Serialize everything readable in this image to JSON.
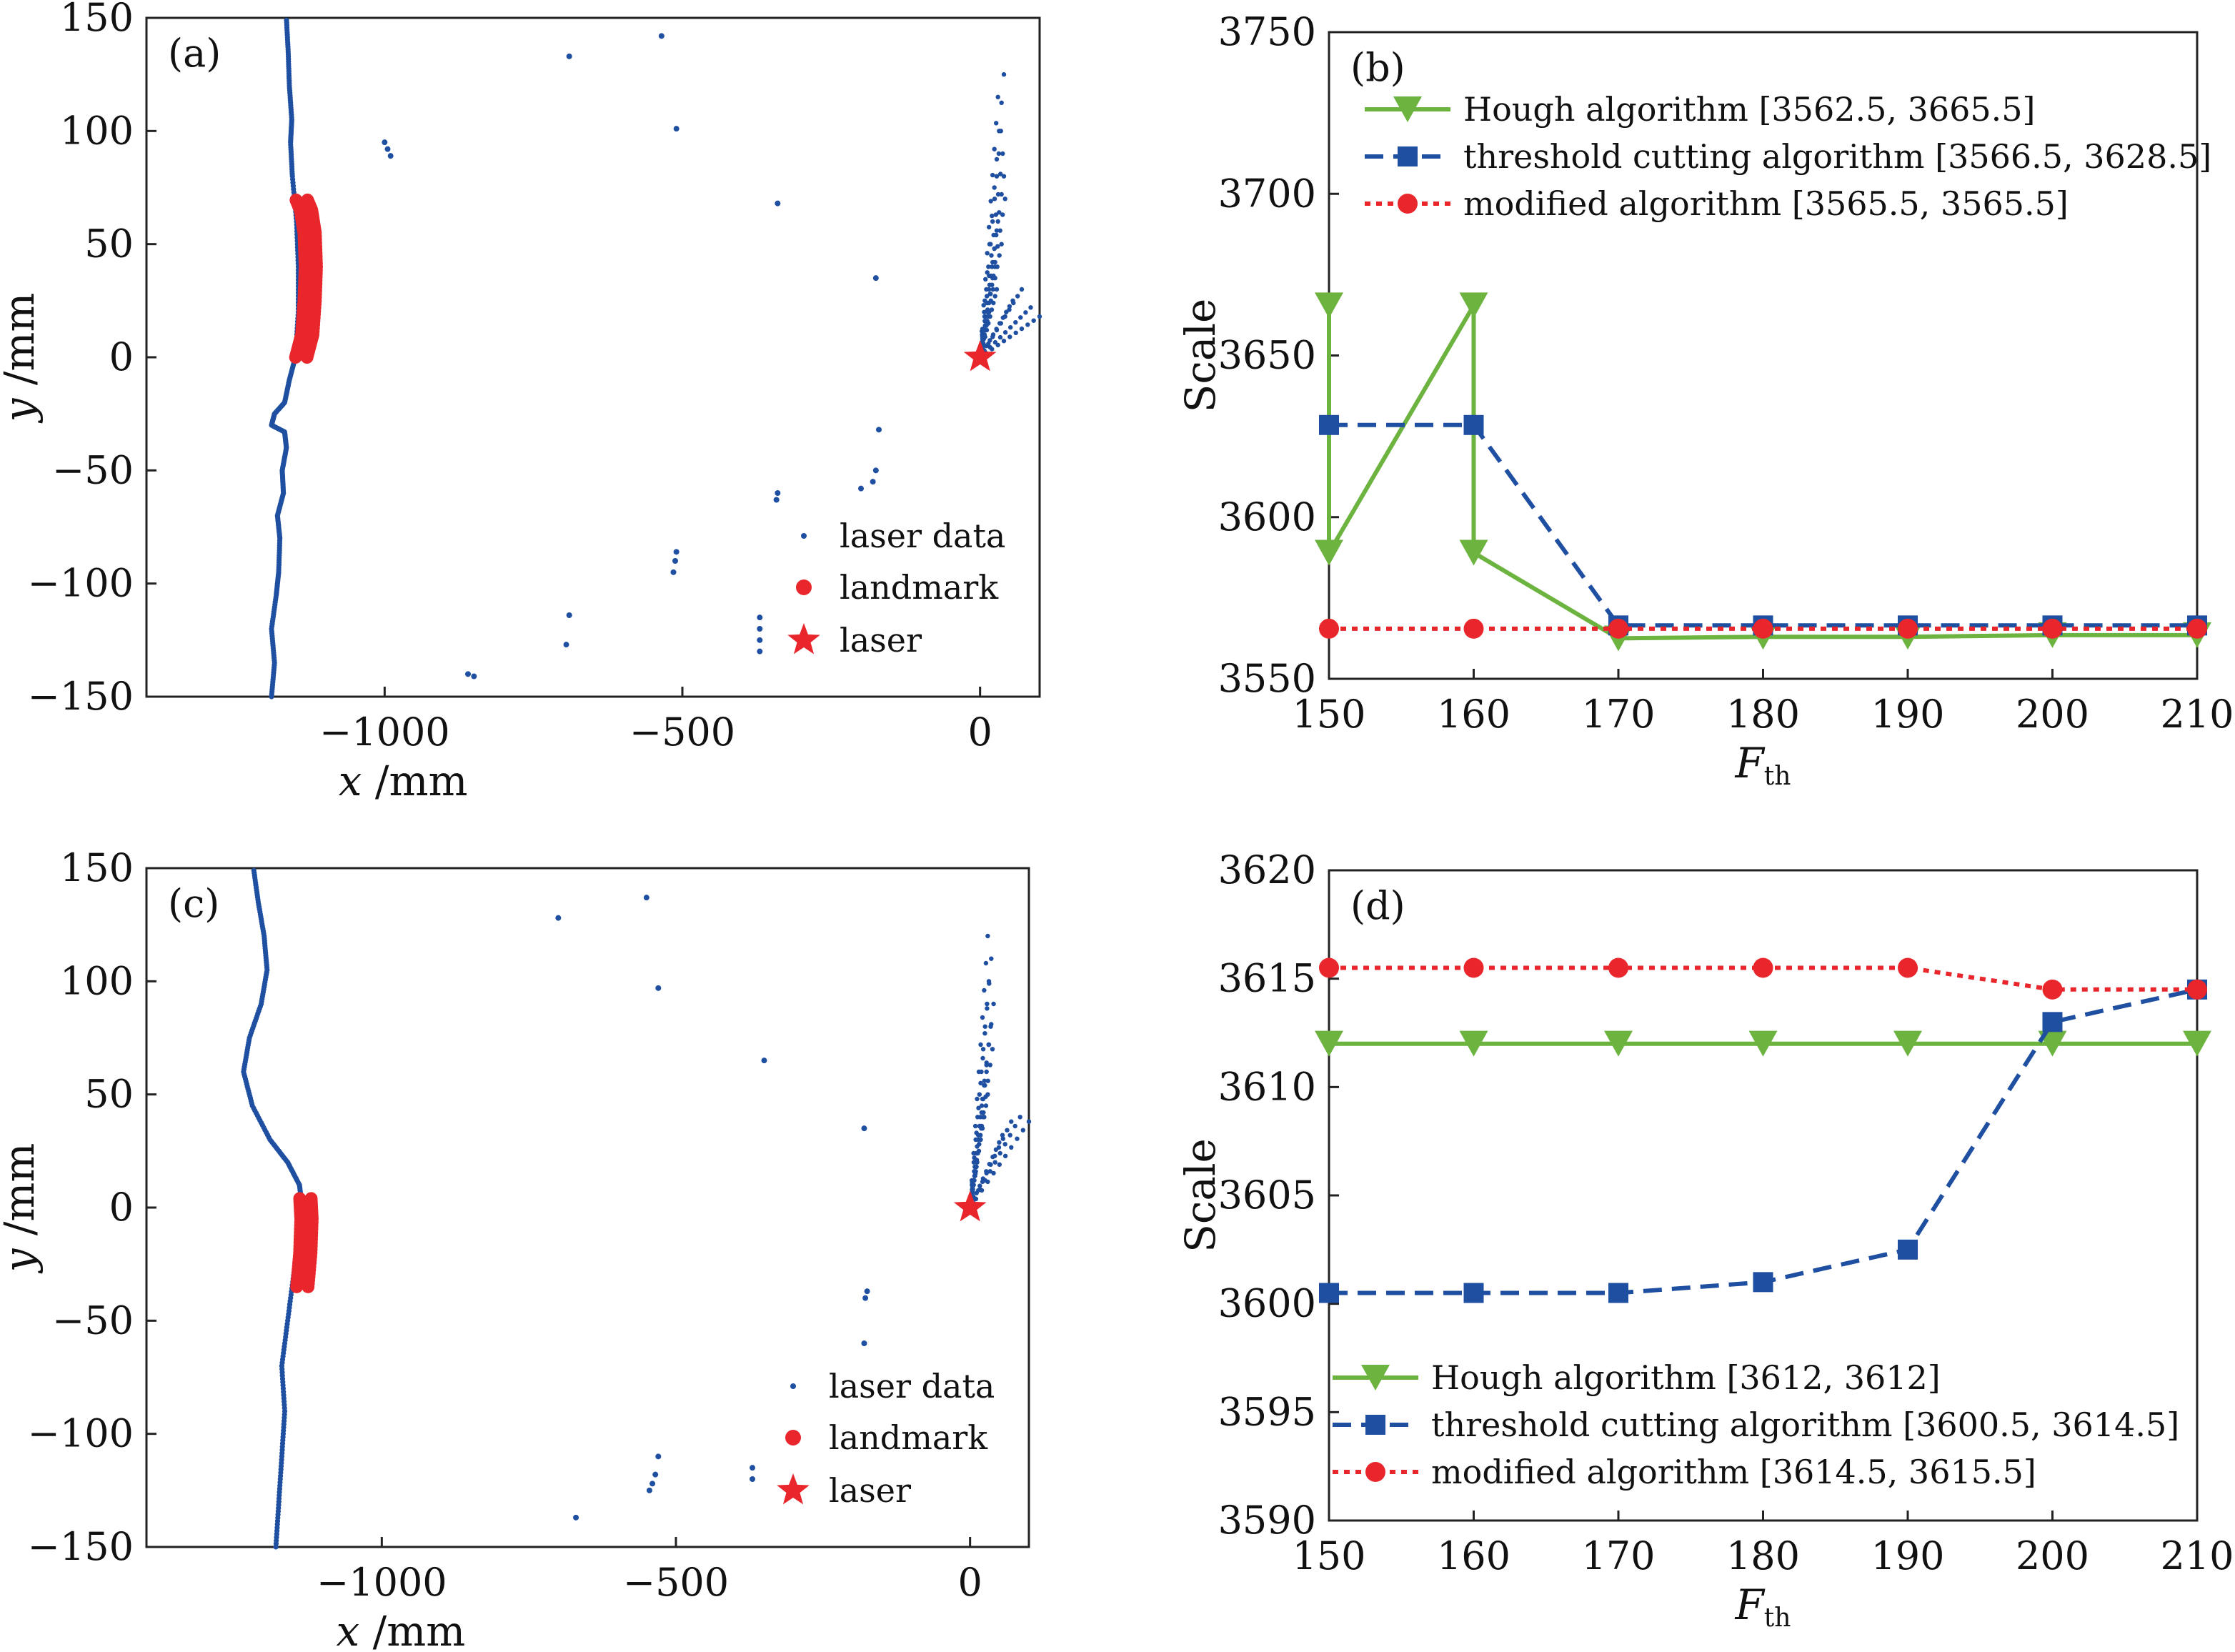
{
  "figure": {
    "panels": [
      "(a)",
      "(b)",
      "(c)",
      "(d)"
    ]
  },
  "colors": {
    "laser_data": "#1f4fa0",
    "landmark": "#e8262c",
    "hough": "#6cb33f",
    "threshold": "#1f4fa0",
    "modified": "#e8262c"
  },
  "chart_data": [
    {
      "panel": "(a)",
      "type": "scatter",
      "xlabel": "x /mm",
      "ylabel": "y /mm",
      "xlim": [
        -1400,
        100
      ],
      "ylim": [
        -150,
        150
      ],
      "xticks": [
        -1000,
        -500,
        0
      ],
      "yticks": [
        150,
        100,
        50,
        0,
        -50,
        -100,
        -150
      ],
      "xtick_labels": [
        "−1000",
        "−500",
        "0"
      ],
      "ytick_labels": [
        "150",
        "100",
        "50",
        "0",
        "−50",
        "−100",
        "−150"
      ],
      "legend": [
        "laser data",
        "landmark",
        "laser"
      ],
      "legend_position": "bottom-right",
      "wall": [
        [
          -1190,
          -150
        ],
        [
          -1185,
          -135
        ],
        [
          -1190,
          -120
        ],
        [
          -1182,
          -105
        ],
        [
          -1178,
          -95
        ],
        [
          -1176,
          -80
        ],
        [
          -1180,
          -70
        ],
        [
          -1170,
          -60
        ],
        [
          -1172,
          -50
        ],
        [
          -1165,
          -40
        ],
        [
          -1168,
          -33
        ],
        [
          -1190,
          -30
        ],
        [
          -1185,
          -25
        ],
        [
          -1168,
          -20
        ],
        [
          -1160,
          -10
        ],
        [
          -1150,
          0
        ],
        [
          -1145,
          20
        ],
        [
          -1145,
          40
        ],
        [
          -1148,
          60
        ],
        [
          -1155,
          80
        ],
        [
          -1158,
          95
        ],
        [
          -1156,
          105
        ],
        [
          -1160,
          120
        ],
        [
          -1162,
          135
        ],
        [
          -1165,
          150
        ]
      ],
      "landmark": [
        [
          -1140,
          0
        ],
        [
          -1130,
          10
        ],
        [
          -1126,
          25
        ],
        [
          -1124,
          40
        ],
        [
          -1126,
          55
        ],
        [
          -1132,
          65
        ],
        [
          -1140,
          70
        ]
      ],
      "scattered": [
        [
          -1000,
          95
        ],
        [
          -995,
          92
        ],
        [
          -990,
          89
        ],
        [
          -690,
          133
        ],
        [
          -535,
          142
        ],
        [
          -510,
          101
        ],
        [
          -340,
          68
        ],
        [
          -175,
          35
        ],
        [
          -170,
          -32
        ],
        [
          -175,
          -50
        ],
        [
          -180,
          -55
        ],
        [
          -200,
          -58
        ],
        [
          -340,
          -60
        ],
        [
          -342,
          -63
        ],
        [
          -510,
          -86
        ],
        [
          -512,
          -90
        ],
        [
          -515,
          -95
        ],
        [
          -690,
          -114
        ],
        [
          -695,
          -127
        ],
        [
          -860,
          -140
        ],
        [
          -850,
          -141
        ],
        [
          -370,
          -115
        ],
        [
          -370,
          -120
        ],
        [
          -370,
          -125
        ],
        [
          -370,
          -130
        ]
      ],
      "cluster": [
        [
          30,
          115
        ],
        [
          35,
          100
        ],
        [
          40,
          80
        ],
        [
          30,
          60
        ],
        [
          25,
          40
        ],
        [
          15,
          20
        ],
        [
          5,
          5
        ],
        [
          40,
          125
        ],
        [
          38,
          90
        ],
        [
          42,
          70
        ],
        [
          36,
          50
        ],
        [
          28,
          30
        ],
        [
          55,
          25
        ],
        [
          70,
          30
        ],
        [
          85,
          22
        ],
        [
          100,
          18
        ]
      ],
      "laser": [
        0,
        0
      ]
    },
    {
      "panel": "(b)",
      "type": "line",
      "xlabel": "F_th",
      "ylabel": "Scale",
      "xlim": [
        150,
        210
      ],
      "ylim": [
        3550,
        3750
      ],
      "xticks": [
        150,
        160,
        170,
        180,
        190,
        200,
        210
      ],
      "yticks": [
        3750,
        3700,
        3650,
        3600,
        3550
      ],
      "legend_position": "top-left",
      "series": [
        {
          "name": "Hough algorithm [3562.5, 3665.5]",
          "style": "solid",
          "marker": "triangle-down",
          "points": [
            [
              150,
              3665.5
            ],
            [
              150,
              3589
            ],
            [
              160,
              3665.5
            ],
            [
              160,
              3589
            ],
            [
              170,
              3562.5
            ],
            [
              180,
              3563
            ],
            [
              190,
              3563
            ],
            [
              200,
              3563.5
            ],
            [
              210,
              3563.5
            ]
          ]
        },
        {
          "name": "threshold cutting algorithm [3566.5, 3628.5]",
          "style": "dashed",
          "marker": "square",
          "points": [
            [
              150,
              3628.5
            ],
            [
              160,
              3628.5
            ],
            [
              170,
              3566.5
            ],
            [
              180,
              3566.5
            ],
            [
              190,
              3566.5
            ],
            [
              200,
              3566.5
            ],
            [
              210,
              3566.5
            ]
          ]
        },
        {
          "name": "modified algorithm [3565.5, 3565.5]",
          "style": "dotted",
          "marker": "circle",
          "points": [
            [
              150,
              3565.5
            ],
            [
              160,
              3565.5
            ],
            [
              170,
              3565.5
            ],
            [
              180,
              3565.5
            ],
            [
              190,
              3565.5
            ],
            [
              200,
              3565.5
            ],
            [
              210,
              3565.5
            ]
          ]
        }
      ]
    },
    {
      "panel": "(c)",
      "type": "scatter",
      "xlabel": "x /mm",
      "ylabel": "y /mm",
      "xlim": [
        -1400,
        100
      ],
      "ylim": [
        -150,
        150
      ],
      "xticks": [
        -1000,
        -500,
        0
      ],
      "yticks": [
        150,
        100,
        50,
        0,
        -50,
        -100,
        -150
      ],
      "xtick_labels": [
        "−1000",
        "−500",
        "0"
      ],
      "ytick_labels": [
        "150",
        "100",
        "50",
        "0",
        "−50",
        "−100",
        "−150"
      ],
      "legend": [
        "laser data",
        "landmark",
        "laser"
      ],
      "legend_position": "bottom-right",
      "wall": [
        [
          -1180,
          -150
        ],
        [
          -1175,
          -130
        ],
        [
          -1170,
          -110
        ],
        [
          -1165,
          -90
        ],
        [
          -1170,
          -70
        ],
        [
          -1160,
          -50
        ],
        [
          -1150,
          -30
        ],
        [
          -1140,
          -10
        ],
        [
          -1135,
          0
        ],
        [
          -1140,
          10
        ],
        [
          -1160,
          20
        ],
        [
          -1190,
          30
        ],
        [
          -1220,
          45
        ],
        [
          -1235,
          60
        ],
        [
          -1225,
          75
        ],
        [
          -1205,
          90
        ],
        [
          -1195,
          105
        ],
        [
          -1200,
          120
        ],
        [
          -1210,
          135
        ],
        [
          -1218,
          150
        ]
      ],
      "landmark": [
        [
          -1135,
          -35
        ],
        [
          -1130,
          -20
        ],
        [
          -1128,
          -5
        ],
        [
          -1130,
          5
        ]
      ],
      "scattered": [
        [
          -700,
          128
        ],
        [
          -550,
          137
        ],
        [
          -530,
          97
        ],
        [
          -350,
          65
        ],
        [
          -180,
          35
        ],
        [
          -175,
          -37
        ],
        [
          -178,
          -40
        ],
        [
          -180,
          -60
        ],
        [
          -530,
          -110
        ],
        [
          -535,
          -118
        ],
        [
          -540,
          -122
        ],
        [
          -545,
          -125
        ],
        [
          -670,
          -137
        ],
        [
          -370,
          -115
        ],
        [
          -370,
          -120
        ]
      ],
      "cluster": [
        [
          30,
          120
        ],
        [
          32,
          100
        ],
        [
          35,
          80
        ],
        [
          28,
          60
        ],
        [
          22,
          40
        ],
        [
          12,
          20
        ],
        [
          5,
          5
        ],
        [
          36,
          110
        ],
        [
          40,
          90
        ],
        [
          38,
          70
        ],
        [
          30,
          50
        ],
        [
          55,
          32
        ],
        [
          70,
          38
        ],
        [
          85,
          40
        ],
        [
          100,
          38
        ]
      ],
      "laser": [
        0,
        0
      ]
    },
    {
      "panel": "(d)",
      "type": "line",
      "xlabel": "F_th",
      "ylabel": "Scale",
      "xlim": [
        150,
        210
      ],
      "ylim": [
        3590,
        3620
      ],
      "xticks": [
        150,
        160,
        170,
        180,
        190,
        200,
        210
      ],
      "yticks": [
        3620,
        3615,
        3610,
        3605,
        3600,
        3595,
        3590
      ],
      "legend_position": "bottom-left",
      "series": [
        {
          "name": "Hough algorithm [3612, 3612]",
          "style": "solid",
          "marker": "triangle-down",
          "points": [
            [
              150,
              3612
            ],
            [
              160,
              3612
            ],
            [
              170,
              3612
            ],
            [
              180,
              3612
            ],
            [
              190,
              3612
            ],
            [
              200,
              3612
            ],
            [
              210,
              3612
            ]
          ]
        },
        {
          "name": "threshold cutting algorithm [3600.5, 3614.5]",
          "style": "dashed",
          "marker": "square",
          "points": [
            [
              150,
              3600.5
            ],
            [
              160,
              3600.5
            ],
            [
              170,
              3600.5
            ],
            [
              180,
              3601
            ],
            [
              190,
              3602.5
            ],
            [
              200,
              3613
            ],
            [
              210,
              3614.5
            ]
          ]
        },
        {
          "name": "modified algorithm [3614.5, 3615.5]",
          "style": "dotted",
          "marker": "circle",
          "points": [
            [
              150,
              3615.5
            ],
            [
              160,
              3615.5
            ],
            [
              170,
              3615.5
            ],
            [
              180,
              3615.5
            ],
            [
              190,
              3615.5
            ],
            [
              200,
              3614.5
            ],
            [
              210,
              3614.5
            ]
          ]
        }
      ]
    }
  ]
}
